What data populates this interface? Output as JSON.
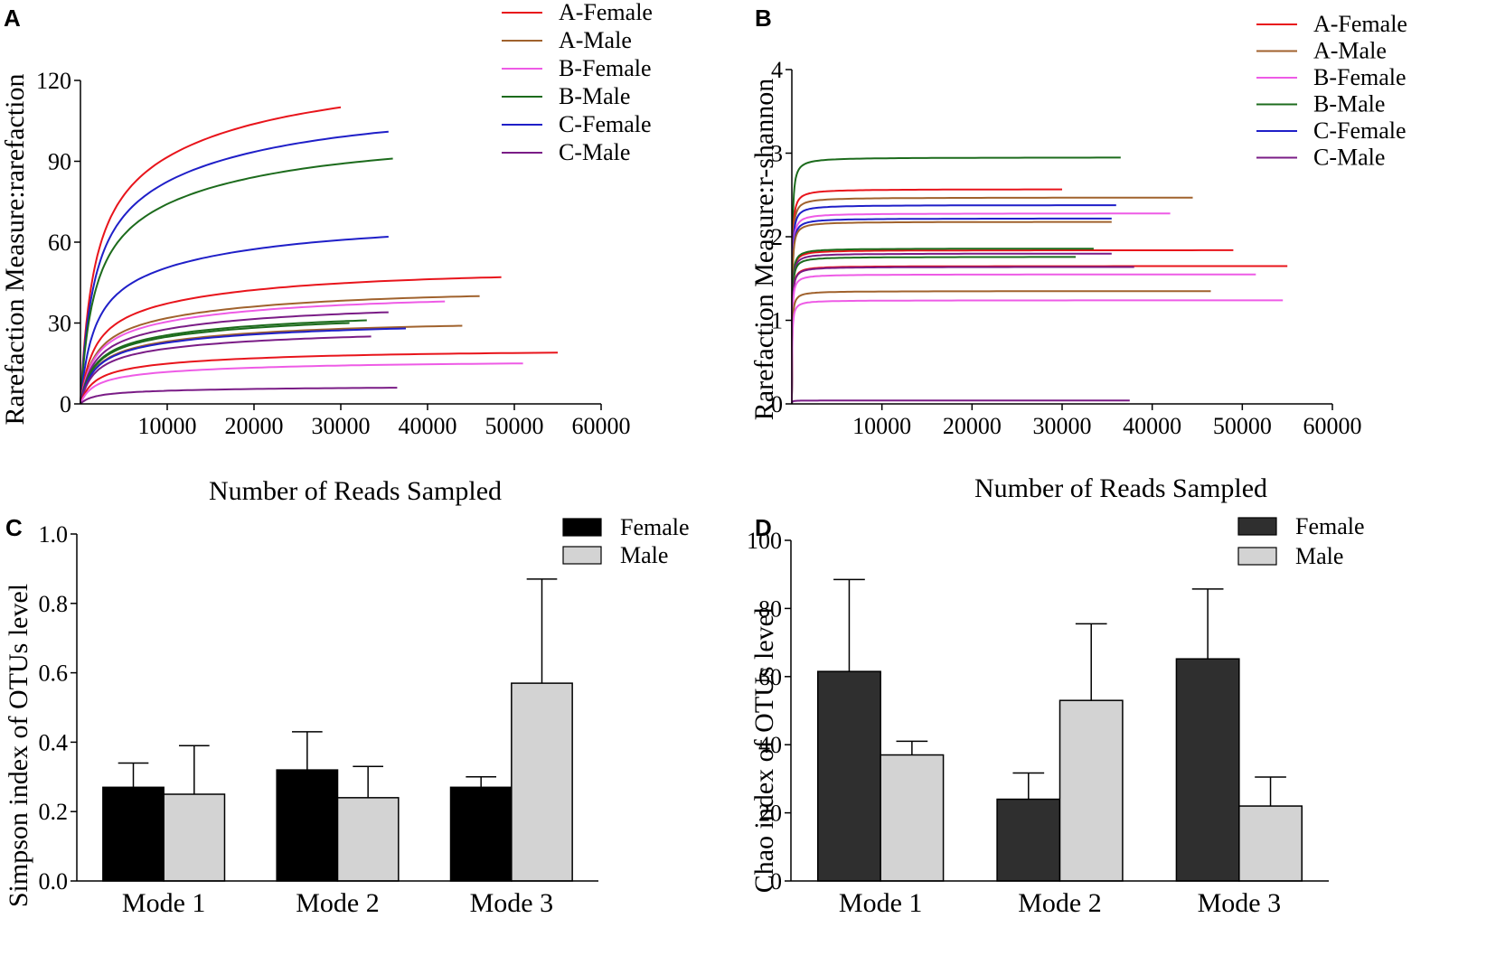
{
  "chart_data": [
    {
      "panel": "A",
      "type": "line",
      "xlabel": "Number of Reads Sampled",
      "ylabel": "Rarefaction Measure:rarefaction",
      "xlim": [
        0,
        60000
      ],
      "ylim": [
        0,
        120
      ],
      "xticks": [
        10000,
        20000,
        30000,
        40000,
        50000,
        60000
      ],
      "xtick_labels": [
        "10000",
        "20000",
        "30000",
        "40000",
        "50000",
        "60000"
      ],
      "yticks": [
        0,
        30,
        60,
        90,
        120
      ],
      "ytick_labels": [
        "0",
        "30",
        "60",
        "90",
        "120"
      ],
      "legend": [
        {
          "name": "A-Female",
          "color": "#e8141b"
        },
        {
          "name": "A-Male",
          "color": "#a0622d"
        },
        {
          "name": "B-Female",
          "color": "#ee5be6"
        },
        {
          "name": "B-Male",
          "color": "#1c6b1c"
        },
        {
          "name": "C-Female",
          "color": "#1f1fc8"
        },
        {
          "name": "C-Male",
          "color": "#7a1c86"
        }
      ],
      "series": [
        {
          "name": "A-Female",
          "color": "#e8141b",
          "max_x": 30000,
          "plateau": 110
        },
        {
          "name": "C-Female",
          "color": "#1f1fc8",
          "max_x": 35500,
          "plateau": 101
        },
        {
          "name": "B-Male",
          "color": "#1c6b1c",
          "max_x": 36000,
          "plateau": 91
        },
        {
          "name": "C-Female",
          "color": "#1f1fc8",
          "max_x": 35500,
          "plateau": 62
        },
        {
          "name": "A-Female",
          "color": "#e8141b",
          "max_x": 48500,
          "plateau": 47
        },
        {
          "name": "A-Male",
          "color": "#a0622d",
          "max_x": 46000,
          "plateau": 40
        },
        {
          "name": "B-Female",
          "color": "#ee5be6",
          "max_x": 42000,
          "plateau": 38
        },
        {
          "name": "C-Male",
          "color": "#7a1c86",
          "max_x": 35500,
          "plateau": 34
        },
        {
          "name": "A-Male",
          "color": "#a0622d",
          "max_x": 44000,
          "plateau": 29
        },
        {
          "name": "B-Male",
          "color": "#1c6b1c",
          "max_x": 33000,
          "plateau": 31
        },
        {
          "name": "B-Male",
          "color": "#1c6b1c",
          "max_x": 31000,
          "plateau": 30
        },
        {
          "name": "C-Female",
          "color": "#1f1fc8",
          "max_x": 37500,
          "plateau": 28
        },
        {
          "name": "C-Male",
          "color": "#7a1c86",
          "max_x": 33500,
          "plateau": 25
        },
        {
          "name": "A-Female",
          "color": "#e8141b",
          "max_x": 55000,
          "plateau": 19
        },
        {
          "name": "B-Female",
          "color": "#ee5be6",
          "max_x": 51000,
          "plateau": 15
        },
        {
          "name": "C-Male",
          "color": "#7a1c86",
          "max_x": 36500,
          "plateau": 6
        }
      ]
    },
    {
      "panel": "B",
      "type": "line",
      "xlabel": "Number of Reads Sampled",
      "ylabel": "Rarefaction Measure:r-shannon",
      "xlim": [
        0,
        60000
      ],
      "ylim": [
        0,
        4
      ],
      "xticks": [
        10000,
        20000,
        30000,
        40000,
        50000,
        60000
      ],
      "xtick_labels": [
        "10000",
        "20000",
        "30000",
        "40000",
        "50000",
        "60000"
      ],
      "yticks": [
        0,
        1,
        2,
        3,
        4
      ],
      "ytick_labels": [
        "0",
        "1",
        "2",
        "3",
        "4"
      ],
      "legend": [
        {
          "name": "A-Female",
          "color": "#e8141b"
        },
        {
          "name": "A-Male",
          "color": "#a0622d"
        },
        {
          "name": "B-Female",
          "color": "#ee5be6"
        },
        {
          "name": "B-Male",
          "color": "#1c6b1c"
        },
        {
          "name": "C-Female",
          "color": "#1f1fc8"
        },
        {
          "name": "C-Male",
          "color": "#7a1c86"
        }
      ],
      "series": [
        {
          "name": "B-Male",
          "color": "#1c6b1c",
          "max_x": 36500,
          "plateau": 2.95
        },
        {
          "name": "A-Female",
          "color": "#e8141b",
          "max_x": 30000,
          "plateau": 2.57
        },
        {
          "name": "A-Male",
          "color": "#a0622d",
          "max_x": 44500,
          "plateau": 2.47
        },
        {
          "name": "C-Female",
          "color": "#1f1fc8",
          "max_x": 36000,
          "plateau": 2.38
        },
        {
          "name": "B-Female",
          "color": "#ee5be6",
          "max_x": 42000,
          "plateau": 2.28
        },
        {
          "name": "C-Female",
          "color": "#1f1fc8",
          "max_x": 35500,
          "plateau": 2.22
        },
        {
          "name": "A-Male",
          "color": "#a0622d",
          "max_x": 35500,
          "plateau": 2.18
        },
        {
          "name": "A-Female",
          "color": "#e8141b",
          "max_x": 49000,
          "plateau": 1.84
        },
        {
          "name": "B-Male",
          "color": "#1c6b1c",
          "max_x": 33500,
          "plateau": 1.86
        },
        {
          "name": "C-Male",
          "color": "#7a1c86",
          "max_x": 35500,
          "plateau": 1.8
        },
        {
          "name": "B-Male",
          "color": "#1c6b1c",
          "max_x": 31500,
          "plateau": 1.76
        },
        {
          "name": "A-Female",
          "color": "#e8141b",
          "max_x": 55000,
          "plateau": 1.65
        },
        {
          "name": "C-Male",
          "color": "#7a1c86",
          "max_x": 38000,
          "plateau": 1.64
        },
        {
          "name": "B-Female",
          "color": "#ee5be6",
          "max_x": 51500,
          "plateau": 1.55
        },
        {
          "name": "A-Male",
          "color": "#a0622d",
          "max_x": 46500,
          "plateau": 1.35
        },
        {
          "name": "B-Female",
          "color": "#ee5be6",
          "max_x": 54500,
          "plateau": 1.24
        },
        {
          "name": "C-Male",
          "color": "#7a1c86",
          "max_x": 37500,
          "plateau": 0.04
        }
      ]
    },
    {
      "panel": "C",
      "type": "bar",
      "xlabel": "",
      "ylabel": "Simpson index of OTUs level",
      "ylim": [
        0,
        1.0
      ],
      "yticks": [
        0,
        0.2,
        0.4,
        0.6,
        0.8,
        1.0
      ],
      "ytick_labels": [
        "0.0",
        "0.2",
        "0.4",
        "0.6",
        "0.8",
        "1.0"
      ],
      "categories": [
        "Mode 1",
        "Mode 2",
        "Mode 3"
      ],
      "series": [
        {
          "name": "Female",
          "color": "#000000",
          "values": [
            0.27,
            0.32,
            0.27
          ],
          "errors": [
            0.07,
            0.11,
            0.03
          ]
        },
        {
          "name": "Male",
          "color": "#d3d3d3",
          "values": [
            0.25,
            0.24,
            0.57
          ],
          "errors": [
            0.14,
            0.09,
            0.3
          ]
        }
      ]
    },
    {
      "panel": "D",
      "type": "bar",
      "xlabel": "",
      "ylabel": "Chao index of OTUs level",
      "ylim": [
        0,
        100
      ],
      "yticks": [
        0,
        20,
        40,
        60,
        80,
        100
      ],
      "ytick_labels": [
        "0",
        "20",
        "40",
        "60",
        "80",
        "100"
      ],
      "categories": [
        "Mode 1",
        "Mode 2",
        "Mode 3"
      ],
      "series": [
        {
          "name": "Female",
          "color": "#2f2f2f",
          "values": [
            61.5,
            24,
            65.2
          ],
          "errors": [
            27,
            7.7,
            20.5
          ]
        },
        {
          "name": "Male",
          "color": "#d3d3d3",
          "values": [
            37,
            53,
            22
          ],
          "errors": [
            4,
            22.5,
            8.5
          ]
        }
      ]
    }
  ]
}
